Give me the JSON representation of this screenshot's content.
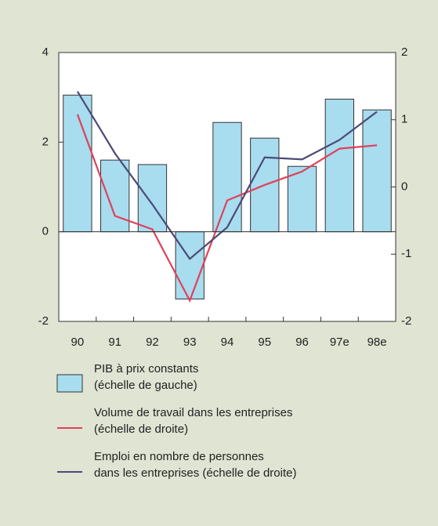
{
  "chart_data": {
    "type": "bar",
    "categories": [
      "90",
      "91",
      "92",
      "93",
      "94",
      "95",
      "96",
      "97e",
      "98e"
    ],
    "ylim": [
      -2,
      4
    ],
    "yticks": [
      -2,
      0,
      2,
      4
    ],
    "y2lim": [
      -2,
      2
    ],
    "y2ticks": [
      -2,
      -1,
      0,
      1,
      2
    ],
    "series": [
      {
        "name": "PIB à prix constants\n(échelle de gauche)",
        "type": "bar",
        "color": "#a8dcef",
        "values": [
          3.05,
          1.6,
          1.5,
          -1.5,
          2.44,
          2.09,
          1.46,
          2.96,
          2.72
        ]
      },
      {
        "name": "Volume de travail dans les entreprises\n(échelle de droite)",
        "type": "line",
        "axis": "y2",
        "color": "#e0405a",
        "values": [
          1.08,
          -0.43,
          -0.63,
          -1.69,
          -0.2,
          0.03,
          0.23,
          0.57,
          0.62
        ]
      },
      {
        "name": "Emploi en nombre de personnes\ndans les entreprises (échelle de droite)",
        "type": "line",
        "axis": "y2",
        "color": "#4b4a78",
        "values": [
          1.42,
          0.5,
          -0.26,
          -1.07,
          -0.6,
          0.44,
          0.41,
          0.7,
          1.12
        ]
      }
    ]
  }
}
